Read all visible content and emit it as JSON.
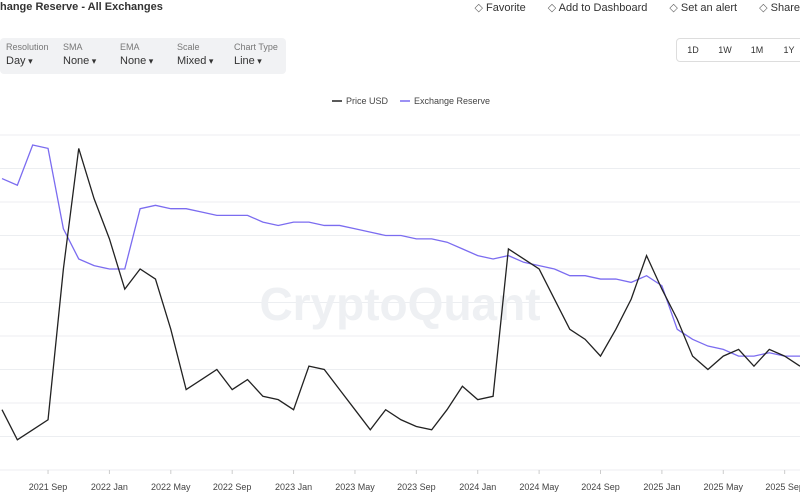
{
  "header": {
    "title": "hange Reserve - All Exchanges",
    "actions": [
      "Favorite",
      "Add to Dashboard",
      "Set an alert",
      "Share"
    ]
  },
  "controls": [
    {
      "label": "Resolution",
      "value": "Day"
    },
    {
      "label": "SMA",
      "value": "None"
    },
    {
      "label": "EMA",
      "value": "None"
    },
    {
      "label": "Scale",
      "value": "Mixed"
    },
    {
      "label": "Chart Type",
      "value": "Line"
    }
  ],
  "ranges": [
    "1D",
    "1W",
    "1M",
    "1Y"
  ],
  "chart_data": {
    "type": "line",
    "watermark": "CryptoQuant",
    "x": [
      "2021-06",
      "2021-07",
      "2021-08",
      "2021-09",
      "2021-10",
      "2021-11",
      "2021-12",
      "2022-01",
      "2022-02",
      "2022-03",
      "2022-04",
      "2022-05",
      "2022-06",
      "2022-07",
      "2022-08",
      "2022-09",
      "2022-10",
      "2022-11",
      "2022-12",
      "2023-01",
      "2023-02",
      "2023-03",
      "2023-04",
      "2023-05",
      "2023-06",
      "2023-07",
      "2023-08",
      "2023-09",
      "2023-10",
      "2023-11",
      "2023-12",
      "2024-01",
      "2024-02",
      "2024-03",
      "2024-04",
      "2024-05",
      "2024-06",
      "2024-07",
      "2024-08",
      "2024-09",
      "2024-10",
      "2024-11",
      "2024-12",
      "2025-01",
      "2025-02",
      "2025-03",
      "2025-04",
      "2025-05",
      "2025-06",
      "2025-07",
      "2025-08",
      "2025-09",
      "2025-10"
    ],
    "xlim": [
      "2021-06",
      "2025-10"
    ],
    "xticks": [
      {
        "value": "2021-09",
        "label": "2021 Sep"
      },
      {
        "value": "2022-01",
        "label": "2022 Jan"
      },
      {
        "value": "2022-05",
        "label": "2022 May"
      },
      {
        "value": "2022-09",
        "label": "2022 Sep"
      },
      {
        "value": "2023-01",
        "label": "2023 Jan"
      },
      {
        "value": "2023-05",
        "label": "2023 May"
      },
      {
        "value": "2023-09",
        "label": "2023 Sep"
      },
      {
        "value": "2024-01",
        "label": "2024 Jan"
      },
      {
        "value": "2024-05",
        "label": "2024 May"
      },
      {
        "value": "2024-09",
        "label": "2024 Sep"
      },
      {
        "value": "2025-01",
        "label": "2025 Jan"
      },
      {
        "value": "2025-05",
        "label": "2025 May"
      },
      {
        "value": "2025-09",
        "label": "2025 Sep"
      }
    ],
    "ylim": [
      0,
      100
    ],
    "series": [
      {
        "name": "Price USD",
        "color": "#222222",
        "values": [
          18,
          9,
          12,
          15,
          60,
          96,
          81,
          69,
          54,
          60,
          57,
          42,
          24,
          27,
          30,
          24,
          27,
          22,
          21,
          18,
          31,
          30,
          24,
          18,
          12,
          18,
          15,
          13,
          12,
          18,
          25,
          21,
          22,
          66,
          63,
          60,
          51,
          42,
          39,
          34,
          42,
          51,
          64,
          54,
          45,
          34,
          30,
          34,
          36,
          31,
          36,
          34,
          31
        ]
      },
      {
        "name": "Exchange Reserve",
        "color": "#7b6cf0",
        "values": [
          87,
          85,
          97,
          96,
          72,
          63,
          61,
          60,
          60,
          78,
          79,
          78,
          78,
          77,
          76,
          76,
          76,
          74,
          73,
          74,
          74,
          73,
          73,
          72,
          71,
          70,
          70,
          69,
          69,
          68,
          66,
          64,
          63,
          64,
          62,
          61,
          60,
          58,
          58,
          57,
          57,
          56,
          58,
          55,
          42,
          39,
          37,
          36,
          34,
          34,
          35,
          34,
          34
        ]
      }
    ]
  }
}
